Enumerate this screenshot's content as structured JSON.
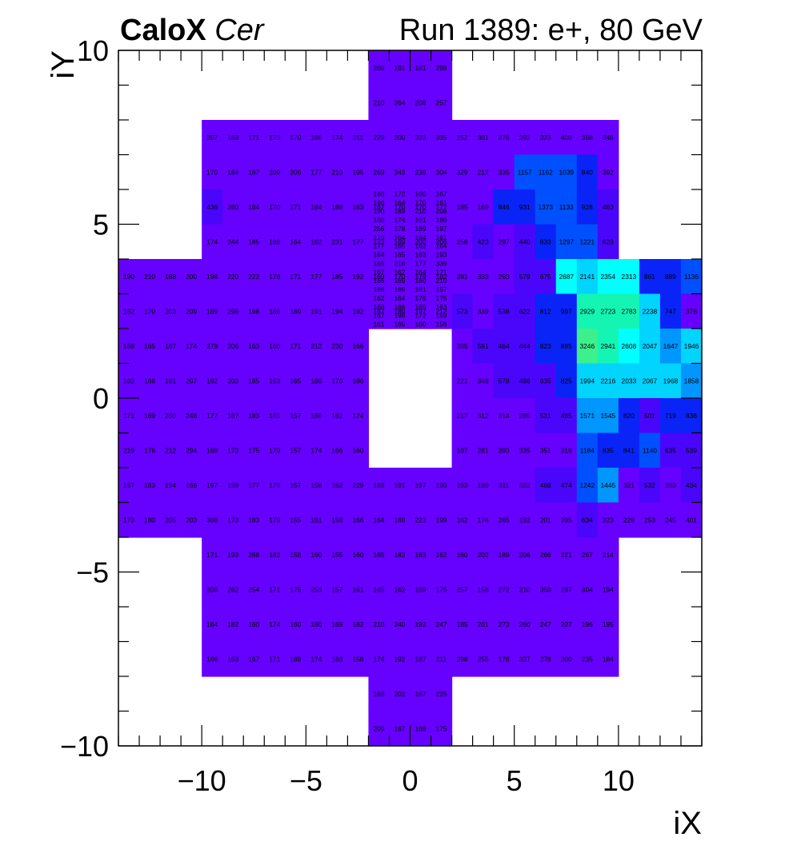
{
  "header": {
    "experiment": "CaloX",
    "channel": "Cer",
    "run_info": "Run 1389: e+, 80 GeV"
  },
  "chart_data": {
    "type": "heatmap",
    "xlabel": "iX",
    "ylabel": "iY",
    "xlim": [
      -14,
      14
    ],
    "ylim": [
      -10,
      10
    ],
    "x_ticks": [
      -10,
      -5,
      0,
      5,
      10
    ],
    "y_ticks": [
      -10,
      -5,
      0,
      5,
      10
    ],
    "x_tick_labels": [
      "−10",
      "−5",
      "0",
      "5",
      "10"
    ],
    "y_tick_labels": [
      "−10",
      "−5",
      "0",
      "5",
      "10"
    ],
    "z_range": [
      150,
      3400
    ],
    "blocks": [
      {
        "x0": -2,
        "y0": 9,
        "nx": 4,
        "ny": 1,
        "values": [
          [
            268,
            191,
            181,
            298
          ]
        ]
      },
      {
        "x0": -2,
        "y0": 8,
        "nx": 4,
        "ny": 1,
        "values": [
          [
            210,
            264,
            208,
            257
          ]
        ]
      },
      {
        "x0": -10,
        "y0": 7,
        "nx": 20,
        "ny": 1,
        "values": [
          [
            207,
            163,
            171,
            173,
            170,
            166,
            174,
            211,
            229,
            200,
            223,
            335,
            252,
            301,
            276,
            292,
            323,
            400,
            368,
            346
          ]
        ]
      },
      {
        "x0": -10,
        "y0": 6,
        "nx": 20,
        "ny": 1,
        "values": [
          [
            170,
            164,
            167,
            209,
            206,
            177,
            210,
            195,
            269,
            343,
            238,
            304,
            329,
            217,
            335,
            1157,
            1162,
            1039,
            840,
            392
          ]
        ]
      },
      {
        "x0": -10,
        "y0": 5,
        "nx": 20,
        "ny": 1,
        "values": [
          [
            436,
            260,
            164,
            170,
            171,
            184,
            188,
            163,
            167,
            170,
            170,
            177,
            185,
            169,
            846,
            931,
            1373,
            1133,
            928,
            463
          ]
        ]
      },
      {
        "x0": -10,
        "y0": 4,
        "nx": 20,
        "ny": 1,
        "values": [
          [
            174,
            244,
            185,
            188,
            164,
            162,
            231,
            177,
            172,
            169,
            200,
            206,
            258,
            423,
            297,
            440,
            833,
            1297,
            1221,
            623
          ]
        ]
      },
      {
        "x0": -14,
        "y0": 3,
        "nx": 28,
        "ny": 1,
        "values": [
          [
            190,
            210,
            168,
            200,
            198,
            220,
            222,
            178,
            171,
            177,
            185,
            192,
            169,
            170,
            179,
            182,
            281,
            333,
            263,
            579,
            675,
            2687,
            2141,
            2354,
            2313,
            861,
            889,
            1136
          ]
        ]
      },
      {
        "x0": -14,
        "y0": 2,
        "nx": 28,
        "ny": 1,
        "values": [
          [
            182,
            170,
            203,
            209,
            189,
            296,
            168,
            166,
            169,
            191,
            194,
            192,
            167,
            189,
            197,
            212,
            573,
            339,
            538,
            622,
            812,
            997,
            2929,
            2723,
            2783,
            2238,
            747,
            378
          ]
        ]
      },
      {
        "x0": -14,
        "y0": 1,
        "nx": 12,
        "ny": 1,
        "values": [
          [
            169,
            165,
            167,
            174,
            279,
            206,
            163,
            160,
            171,
            212,
            230,
            166
          ]
        ]
      },
      {
        "x0": 2,
        "y0": 1,
        "nx": 12,
        "ny": 1,
        "values": [
          [
            305,
            591,
            464,
            444,
            823,
            895,
            3246,
            2941,
            2608,
            2047,
            1647,
            1946
          ]
        ]
      },
      {
        "x0": -14,
        "y0": 0,
        "nx": 12,
        "ny": 1,
        "values": [
          [
            162,
            166,
            161,
            207,
            182,
            203,
            185,
            163,
            165,
            186,
            170,
            186
          ]
        ]
      },
      {
        "x0": 2,
        "y0": 0,
        "nx": 12,
        "ny": 1,
        "values": [
          [
            221,
            348,
            578,
            486,
            635,
            825,
            1994,
            2216,
            2033,
            2067,
            1968,
            1858
          ]
        ]
      },
      {
        "x0": -14,
        "y0": -1,
        "nx": 12,
        "ny": 1,
        "values": [
          [
            171,
            169,
            200,
            248,
            177,
            187,
            183,
            181,
            157,
            160,
            161,
            174
          ]
        ]
      },
      {
        "x0": 2,
        "y0": -1,
        "nx": 12,
        "ny": 1,
        "values": [
          [
            217,
            312,
            314,
            285,
            531,
            485,
            1571,
            1545,
            820,
            501,
            719,
            838
          ]
        ]
      },
      {
        "x0": -14,
        "y0": -2,
        "nx": 12,
        "ny": 1,
        "values": [
          [
            219,
            176,
            212,
            294,
            169,
            173,
            175,
            179,
            157,
            174,
            166,
            160
          ]
        ]
      },
      {
        "x0": 2,
        "y0": -2,
        "nx": 12,
        "ny": 1,
        "values": [
          [
            167,
            281,
            393,
            335,
            351,
            316,
            1184,
            835,
            841,
            1140,
            635,
            539
          ]
        ]
      },
      {
        "x0": -2,
        "y0": 2,
        "nx": 4,
        "ny": 16,
        "values": [
          [
            166,
            172,
            160,
            167
          ],
          [
            166,
            164,
            170,
            161
          ],
          [
            190,
            189,
            210,
            208
          ],
          [
            168,
            174,
            161,
            186
          ],
          [
            256,
            178,
            169,
            197
          ],
          [
            179,
            164,
            164,
            161
          ],
          [
            177,
            165,
            162,
            164
          ],
          [
            164,
            165,
            163,
            193
          ],
          [
            166,
            216,
            177,
            339
          ],
          [
            167,
            162,
            164,
            171
          ],
          [
            166,
            169,
            160,
            210
          ],
          [
            166,
            166,
            161,
            157
          ],
          [
            162,
            164,
            175,
            175
          ],
          [
            166,
            166,
            165,
            163
          ],
          [
            167,
            198,
            172,
            159
          ],
          [
            161,
            165,
            160,
            156
          ]
        ]
      },
      {
        "x0": -14,
        "y0": -3,
        "nx": 28,
        "ny": 1,
        "values": [
          [
            167,
            183,
            194,
            169,
            197,
            199,
            177,
            179,
            157,
            158,
            162,
            229,
            169,
            191,
            197,
            190,
            193,
            189,
            311,
            322,
            468,
            474,
            1242,
            1445,
            321,
            532,
            393,
            434
          ]
        ]
      },
      {
        "x0": -14,
        "y0": -4,
        "nx": 28,
        "ny": 1,
        "values": [
          [
            173,
            180,
            205,
            203,
            368,
            173,
            183,
            179,
            155,
            181,
            158,
            166,
            164,
            168,
            223,
            199,
            162,
            174,
            265,
            182,
            201,
            395,
            634,
            323,
            228,
            253,
            245,
            401
          ]
        ]
      },
      {
        "x0": -10,
        "y0": -5,
        "nx": 20,
        "ny": 1,
        "values": [
          [
            171,
            193,
            288,
            182,
            158,
            160,
            155,
            160,
            185,
            183,
            163,
            162,
            160,
            202,
            189,
            206,
            266,
            221,
            267,
            214
          ]
        ]
      },
      {
        "x0": -10,
        "y0": -6,
        "nx": 20,
        "ny": 1,
        "values": [
          [
            208,
            262,
            254,
            171,
            175,
            253,
            157,
            161,
            165,
            162,
            169,
            175,
            157,
            158,
            272,
            210,
            350,
            297,
            304,
            194
          ]
        ]
      },
      {
        "x0": -10,
        "y0": -7,
        "nx": 20,
        "ny": 1,
        "values": [
          [
            164,
            182,
            160,
            174,
            160,
            180,
            169,
            182,
            210,
            240,
            192,
            247,
            185,
            201,
            273,
            260,
            247,
            227,
            196,
            195
          ]
        ]
      },
      {
        "x0": -10,
        "y0": -8,
        "nx": 20,
        "ny": 1,
        "values": [
          [
            166,
            163,
            167,
            171,
            188,
            174,
            163,
            158,
            174,
            192,
            187,
            211,
            298,
            255,
            178,
            327,
            278,
            200,
            235,
            184
          ]
        ]
      },
      {
        "x0": -2,
        "y0": -9,
        "nx": 4,
        "ny": 1,
        "values": [
          [
            168,
            202,
            167,
            225
          ]
        ]
      },
      {
        "x0": -2,
        "y0": -10,
        "nx": 4,
        "ny": 1,
        "values": [
          [
            209,
            167,
            168,
            175
          ]
        ]
      }
    ],
    "colors": {
      "palette": [
        "#6600ff",
        "#4a06fb",
        "#0a24f7",
        "#0050ff",
        "#0096ff",
        "#00d4ff",
        "#00ffff",
        "#14f5b4",
        "#3cf08c"
      ],
      "palette_thresholds": [
        150,
        420,
        700,
        1000,
        1400,
        1900,
        2300,
        2700,
        3000,
        3400
      ],
      "frame": "#000000",
      "text": "#000000"
    }
  }
}
